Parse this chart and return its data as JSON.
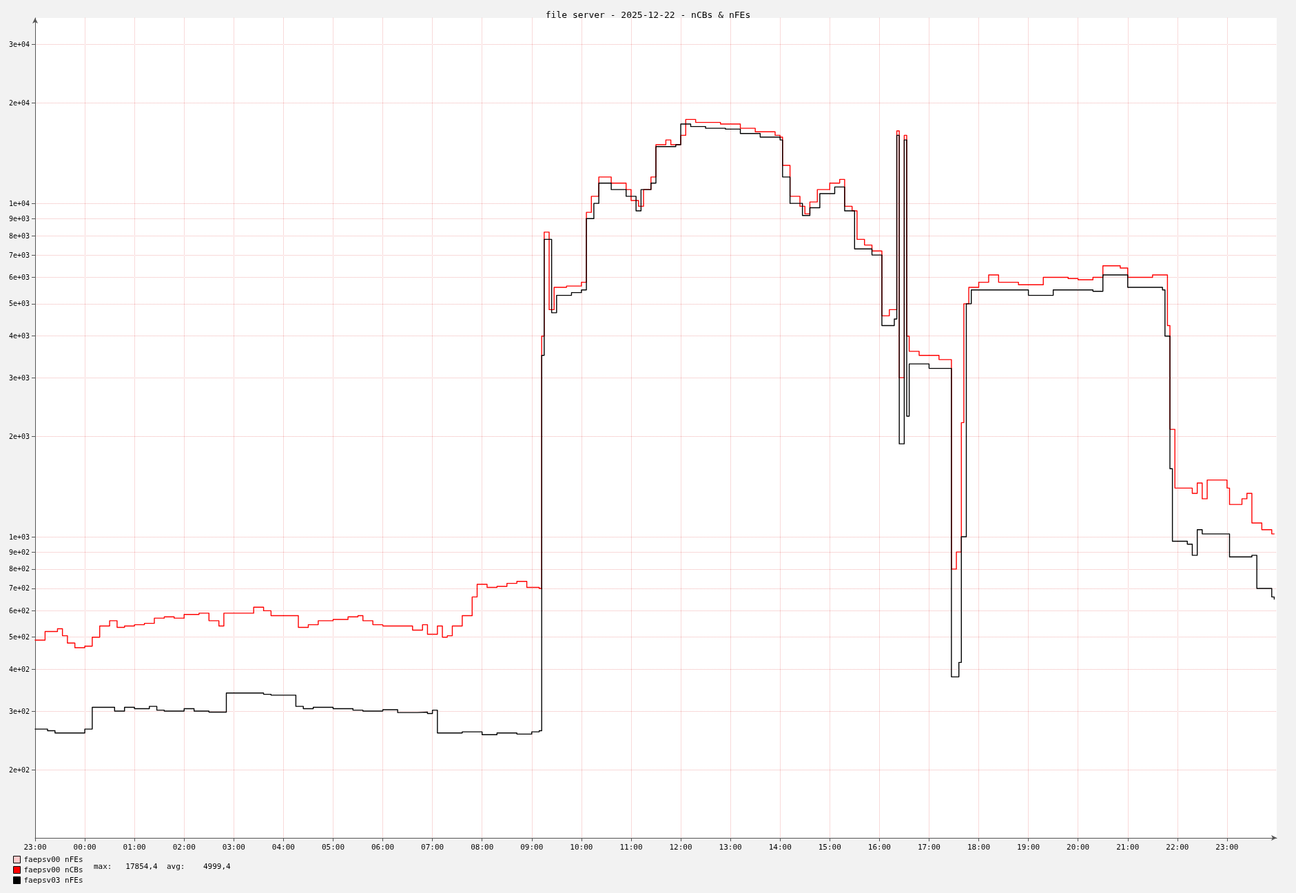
{
  "chart_data": {
    "type": "step",
    "title": "file server - 2025-12-22 - nCBs & nFEs",
    "annotations": [
      "max:   17854,4  avg:    4999,4"
    ],
    "series": [
      {
        "name": "faepsv00 nFEs",
        "color": "#ffcccc"
      },
      {
        "name": "faepsv00 nCBs",
        "color": "#ff0000",
        "x": [
          "2025-12-21T23:00",
          "2025-12-21T23:12",
          "2025-12-21T23:27",
          "2025-12-21T23:33",
          "2025-12-21T23:39",
          "2025-12-21T23:48",
          "2025-12-22T00:00",
          "2025-12-22T00:09",
          "2025-12-22T00:18",
          "2025-12-22T00:30",
          "2025-12-22T00:39",
          "2025-12-22T00:48",
          "2025-12-22T01:00",
          "2025-12-22T01:12",
          "2025-12-22T01:24",
          "2025-12-22T01:36",
          "2025-12-22T01:48",
          "2025-12-22T02:00",
          "2025-12-22T02:18",
          "2025-12-22T02:30",
          "2025-12-22T02:42",
          "2025-12-22T02:48",
          "2025-12-22T03:12",
          "2025-12-22T03:24",
          "2025-12-22T03:36",
          "2025-12-22T03:45",
          "2025-12-22T04:12",
          "2025-12-22T04:18",
          "2025-12-22T04:30",
          "2025-12-22T04:42",
          "2025-12-22T05:00",
          "2025-12-22T05:18",
          "2025-12-22T05:30",
          "2025-12-22T05:36",
          "2025-12-22T05:48",
          "2025-12-22T06:00",
          "2025-12-22T06:24",
          "2025-12-22T06:36",
          "2025-12-22T06:48",
          "2025-12-22T06:54",
          "2025-12-22T07:06",
          "2025-12-22T07:12",
          "2025-12-22T07:18",
          "2025-12-22T07:24",
          "2025-12-22T07:36",
          "2025-12-22T07:48",
          "2025-12-22T07:54",
          "2025-12-22T08:06",
          "2025-12-22T08:18",
          "2025-12-22T08:30",
          "2025-12-22T08:42",
          "2025-12-22T08:54",
          "2025-12-22T09:09",
          "2025-12-22T09:12",
          "2025-12-22T09:15",
          "2025-12-22T09:21",
          "2025-12-22T09:27",
          "2025-12-22T09:42",
          "2025-12-22T10:00",
          "2025-12-22T10:06",
          "2025-12-22T10:12",
          "2025-12-22T10:21",
          "2025-12-22T10:36",
          "2025-12-22T10:54",
          "2025-12-22T11:00",
          "2025-12-22T11:09",
          "2025-12-22T11:15",
          "2025-12-22T11:24",
          "2025-12-22T11:30",
          "2025-12-22T11:42",
          "2025-12-22T11:48",
          "2025-12-22T12:00",
          "2025-12-22T12:06",
          "2025-12-22T12:18",
          "2025-12-22T12:48",
          "2025-12-22T13:12",
          "2025-12-22T13:30",
          "2025-12-22T13:54",
          "2025-12-22T14:00",
          "2025-12-22T14:03",
          "2025-12-22T14:12",
          "2025-12-22T14:24",
          "2025-12-22T14:30",
          "2025-12-22T14:36",
          "2025-12-22T14:45",
          "2025-12-22T15:00",
          "2025-12-22T15:12",
          "2025-12-22T15:18",
          "2025-12-22T15:27",
          "2025-12-22T15:33",
          "2025-12-22T15:42",
          "2025-12-22T15:51",
          "2025-12-22T16:00",
          "2025-12-22T16:03",
          "2025-12-22T16:12",
          "2025-12-22T16:21",
          "2025-12-22T16:24",
          "2025-12-22T16:30",
          "2025-12-22T16:33",
          "2025-12-22T16:36",
          "2025-12-22T16:48",
          "2025-12-22T17:00",
          "2025-12-22T17:12",
          "2025-12-22T17:27",
          "2025-12-22T17:33",
          "2025-12-22T17:39",
          "2025-12-22T17:42",
          "2025-12-22T17:48",
          "2025-12-22T18:00",
          "2025-12-22T18:12",
          "2025-12-22T18:24",
          "2025-12-22T18:48",
          "2025-12-22T19:00",
          "2025-12-22T19:18",
          "2025-12-22T19:48",
          "2025-12-22T20:00",
          "2025-12-22T20:18",
          "2025-12-22T20:30",
          "2025-12-22T20:51",
          "2025-12-22T21:00",
          "2025-12-22T21:30",
          "2025-12-22T21:48",
          "2025-12-22T21:51",
          "2025-12-22T21:57",
          "2025-12-22T22:18",
          "2025-12-22T22:24",
          "2025-12-22T22:30",
          "2025-12-22T22:36",
          "2025-12-22T23:00",
          "2025-12-22T23:03",
          "2025-12-22T23:18",
          "2025-12-22T23:24",
          "2025-12-22T23:30",
          "2025-12-22T23:42",
          "2025-12-22T23:54",
          "2025-12-22T23:57"
        ],
        "values": [
          490,
          520,
          530,
          505,
          480,
          465,
          470,
          500,
          540,
          560,
          535,
          540,
          545,
          550,
          570,
          575,
          570,
          585,
          590,
          560,
          540,
          590,
          590,
          615,
          600,
          580,
          580,
          535,
          545,
          560,
          565,
          575,
          580,
          560,
          545,
          540,
          540,
          525,
          545,
          510,
          540,
          500,
          505,
          540,
          580,
          660,
          720,
          705,
          710,
          725,
          735,
          705,
          700,
          4000,
          8200,
          4800,
          5600,
          5650,
          5800,
          9400,
          10500,
          12000,
          11500,
          11000,
          10200,
          9800,
          11000,
          12000,
          15000,
          15500,
          15000,
          16000,
          17854,
          17500,
          17300,
          16800,
          16400,
          16000,
          15800,
          13000,
          10500,
          9800,
          9300,
          10100,
          11000,
          11500,
          11800,
          9800,
          9500,
          7800,
          7500,
          7200,
          7200,
          4600,
          4800,
          16500,
          3000,
          16000,
          4000,
          3600,
          3500,
          3500,
          3400,
          800,
          900,
          2200,
          5000,
          5600,
          5800,
          6100,
          5800,
          5700,
          5700,
          6000,
          5950,
          5900,
          6000,
          6500,
          6400,
          6000,
          6100,
          4300,
          2100,
          1400,
          1350,
          1450,
          1300,
          1480,
          1400,
          1250,
          1300,
          1350,
          1100,
          1050,
          1020,
          1020
        ]
      },
      {
        "name": "faepsv03 nFEs",
        "color": "#000000",
        "x": [
          "2025-12-21T23:00",
          "2025-12-21T23:15",
          "2025-12-21T23:24",
          "2025-12-21T23:48",
          "2025-12-22T00:00",
          "2025-12-22T00:09",
          "2025-12-22T00:36",
          "2025-12-22T00:48",
          "2025-12-22T01:00",
          "2025-12-22T01:18",
          "2025-12-22T01:27",
          "2025-12-22T01:36",
          "2025-12-22T02:00",
          "2025-12-22T02:12",
          "2025-12-22T02:30",
          "2025-12-22T02:51",
          "2025-12-22T03:18",
          "2025-12-22T03:36",
          "2025-12-22T03:45",
          "2025-12-22T04:15",
          "2025-12-22T04:24",
          "2025-12-22T04:36",
          "2025-12-22T05:00",
          "2025-12-22T05:24",
          "2025-12-22T05:36",
          "2025-12-22T06:00",
          "2025-12-22T06:18",
          "2025-12-22T06:42",
          "2025-12-22T06:54",
          "2025-12-22T07:00",
          "2025-12-22T07:06",
          "2025-12-22T07:36",
          "2025-12-22T08:00",
          "2025-12-22T08:18",
          "2025-12-22T08:42",
          "2025-12-22T09:00",
          "2025-12-22T09:09",
          "2025-12-22T09:12",
          "2025-12-22T09:15",
          "2025-12-22T09:24",
          "2025-12-22T09:30",
          "2025-12-22T09:48",
          "2025-12-22T10:00",
          "2025-12-22T10:06",
          "2025-12-22T10:15",
          "2025-12-22T10:21",
          "2025-12-22T10:36",
          "2025-12-22T10:54",
          "2025-12-22T11:06",
          "2025-12-22T11:12",
          "2025-12-22T11:24",
          "2025-12-22T11:30",
          "2025-12-22T11:54",
          "2025-12-22T12:00",
          "2025-12-22T12:12",
          "2025-12-22T12:30",
          "2025-12-22T12:54",
          "2025-12-22T13:12",
          "2025-12-22T13:36",
          "2025-12-22T14:00",
          "2025-12-22T14:03",
          "2025-12-22T14:12",
          "2025-12-22T14:27",
          "2025-12-22T14:36",
          "2025-12-22T14:48",
          "2025-12-22T15:06",
          "2025-12-22T15:18",
          "2025-12-22T15:30",
          "2025-12-22T15:51",
          "2025-12-22T16:00",
          "2025-12-22T16:03",
          "2025-12-22T16:18",
          "2025-12-22T16:21",
          "2025-12-22T16:24",
          "2025-12-22T16:30",
          "2025-12-22T16:33",
          "2025-12-22T16:36",
          "2025-12-22T17:00",
          "2025-12-22T17:27",
          "2025-12-22T17:36",
          "2025-12-22T17:39",
          "2025-12-22T17:45",
          "2025-12-22T17:51",
          "2025-12-22T18:30",
          "2025-12-22T19:00",
          "2025-12-22T19:30",
          "2025-12-22T20:00",
          "2025-12-22T20:18",
          "2025-12-22T20:30",
          "2025-12-22T21:00",
          "2025-12-22T21:42",
          "2025-12-22T21:45",
          "2025-12-22T21:51",
          "2025-12-22T21:54",
          "2025-12-22T22:12",
          "2025-12-22T22:18",
          "2025-12-22T22:24",
          "2025-12-22T22:30",
          "2025-12-22T23:00",
          "2025-12-22T23:03",
          "2025-12-22T23:30",
          "2025-12-22T23:36",
          "2025-12-22T23:54",
          "2025-12-22T23:57"
        ],
        "values": [
          265,
          262,
          258,
          258,
          265,
          308,
          300,
          308,
          305,
          310,
          302,
          300,
          305,
          300,
          298,
          340,
          340,
          337,
          335,
          310,
          305,
          308,
          305,
          302,
          300,
          303,
          297,
          298,
          295,
          302,
          258,
          260,
          255,
          258,
          256,
          260,
          262,
          3500,
          7800,
          4700,
          5300,
          5400,
          5500,
          9000,
          10000,
          11500,
          11000,
          10500,
          9500,
          11000,
          11500,
          14800,
          15000,
          17300,
          17000,
          16800,
          16700,
          16200,
          15800,
          15500,
          12000,
          10000,
          9200,
          9700,
          10700,
          11200,
          9500,
          7300,
          7000,
          7000,
          4300,
          4500,
          16000,
          1900,
          15500,
          2300,
          3300,
          3200,
          380,
          420,
          1000,
          5000,
          5500,
          5500,
          5300,
          5500,
          5500,
          5450,
          6100,
          5600,
          5500,
          4000,
          1600,
          970,
          950,
          880,
          1050,
          1020,
          1020,
          870,
          880,
          700,
          660,
          650
        ]
      }
    ],
    "log": true,
    "grid": true,
    "legend": "bottom left",
    "marker": "none",
    "line_style": "solid",
    "xlim": [
      "2025-12-21T23:00",
      "2025-12-23T00:00"
    ],
    "xticks": [
      {
        "value": "2025-12-21T23:00",
        "label": "23:00"
      },
      {
        "value": "2025-12-22T00:00",
        "label": "00:00"
      },
      {
        "value": "2025-12-22T01:00",
        "label": "01:00"
      },
      {
        "value": "2025-12-22T02:00",
        "label": "02:00"
      },
      {
        "value": "2025-12-22T03:00",
        "label": "03:00"
      },
      {
        "value": "2025-12-22T04:00",
        "label": "04:00"
      },
      {
        "value": "2025-12-22T05:00",
        "label": "05:00"
      },
      {
        "value": "2025-12-22T06:00",
        "label": "06:00"
      },
      {
        "value": "2025-12-22T07:00",
        "label": "07:00"
      },
      {
        "value": "2025-12-22T08:00",
        "label": "08:00"
      },
      {
        "value": "2025-12-22T09:00",
        "label": "09:00"
      },
      {
        "value": "2025-12-22T10:00",
        "label": "10:00"
      },
      {
        "value": "2025-12-22T11:00",
        "label": "11:00"
      },
      {
        "value": "2025-12-22T12:00",
        "label": "12:00"
      },
      {
        "value": "2025-12-22T13:00",
        "label": "13:00"
      },
      {
        "value": "2025-12-22T14:00",
        "label": "14:00"
      },
      {
        "value": "2025-12-22T15:00",
        "label": "15:00"
      },
      {
        "value": "2025-12-22T16:00",
        "label": "16:00"
      },
      {
        "value": "2025-12-22T17:00",
        "label": "17:00"
      },
      {
        "value": "2025-12-22T18:00",
        "label": "18:00"
      },
      {
        "value": "2025-12-22T19:00",
        "label": "19:00"
      },
      {
        "value": "2025-12-22T20:00",
        "label": "20:00"
      },
      {
        "value": "2025-12-22T21:00",
        "label": "21:00"
      },
      {
        "value": "2025-12-22T22:00",
        "label": "22:00"
      },
      {
        "value": "2025-12-22T23:00",
        "label": "23:00"
      }
    ],
    "ylim": [
      125,
      36000
    ],
    "yticks": [
      {
        "value": 200,
        "label": "2e+02"
      },
      {
        "value": 300,
        "label": "3e+02"
      },
      {
        "value": 400,
        "label": "4e+02"
      },
      {
        "value": 500,
        "label": "5e+02"
      },
      {
        "value": 600,
        "label": "6e+02"
      },
      {
        "value": 700,
        "label": "7e+02"
      },
      {
        "value": 800,
        "label": "8e+02"
      },
      {
        "value": 900,
        "label": "9e+02"
      },
      {
        "value": 1000,
        "label": "1e+03"
      },
      {
        "value": 2000,
        "label": "2e+03"
      },
      {
        "value": 3000,
        "label": "3e+03"
      },
      {
        "value": 4000,
        "label": "4e+03"
      },
      {
        "value": 5000,
        "label": "5e+03"
      },
      {
        "value": 6000,
        "label": "6e+03"
      },
      {
        "value": 7000,
        "label": "7e+03"
      },
      {
        "value": 8000,
        "label": "8e+03"
      },
      {
        "value": 9000,
        "label": "9e+03"
      },
      {
        "value": 10000,
        "label": "1e+04"
      },
      {
        "value": 20000,
        "label": "2e+04"
      },
      {
        "value": 30000,
        "label": "3e+04"
      }
    ]
  }
}
